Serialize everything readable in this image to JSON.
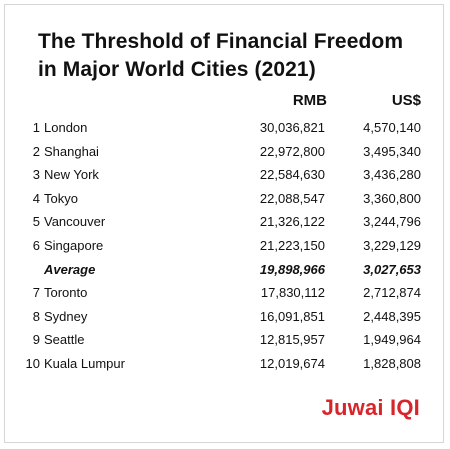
{
  "chart_data": {
    "type": "table",
    "title_lines": [
      "The Threshold of Financial Freedom",
      "in Major World Cities (2021)"
    ],
    "columns": [
      "RMB",
      "US$"
    ],
    "rows": [
      {
        "rank": "1",
        "city": "London",
        "rmb": "30,036,821",
        "usd": "4,570,140"
      },
      {
        "rank": "2",
        "city": "Shanghai",
        "rmb": "22,972,800",
        "usd": "3,495,340"
      },
      {
        "rank": "3",
        "city": "New York",
        "rmb": "22,584,630",
        "usd": "3,436,280"
      },
      {
        "rank": "4",
        "city": "Tokyo",
        "rmb": "22,088,547",
        "usd": "3,360,800"
      },
      {
        "rank": "5",
        "city": "Vancouver",
        "rmb": "21,326,122",
        "usd": "3,244,796"
      },
      {
        "rank": "6",
        "city": "Singapore",
        "rmb": "21,223,150",
        "usd": "3,229,129"
      },
      {
        "rank": "",
        "city": "Average",
        "rmb": "19,898,966",
        "usd": "3,027,653",
        "is_average": true
      },
      {
        "rank": "7",
        "city": "Toronto",
        "rmb": "17,830,112",
        "usd": "2,712,874"
      },
      {
        "rank": "8",
        "city": "Sydney",
        "rmb": "16,091,851",
        "usd": "2,448,395"
      },
      {
        "rank": "9",
        "city": "Seattle",
        "rmb": "12,815,957",
        "usd": "1,949,964"
      },
      {
        "rank": "10",
        "city": "Kuala Lumpur",
        "rmb": "12,019,674",
        "usd": "1,828,808"
      }
    ]
  },
  "brand": {
    "logo_text": "Juwai IQI",
    "color": "#d7262b"
  }
}
